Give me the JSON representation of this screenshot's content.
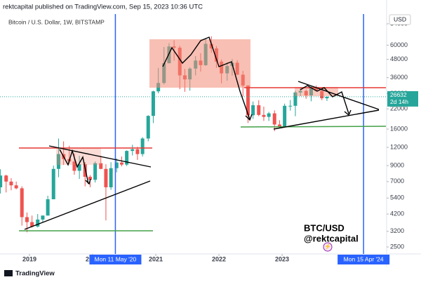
{
  "header": "rektcapital published on TradingView.com, Sep 15, 2023 10:36 UTC",
  "footer": "TradingView",
  "chart_data": {
    "type": "candlestick",
    "title": "Bitcoin / U.S. Dollar, 1W, BITSTAMP",
    "currency": "USD",
    "annotations": [
      "BTC/USD",
      "@rektcapital"
    ],
    "up_color": "#26a69a",
    "down_color": "#ef5350",
    "log_scale": true,
    "x": [
      2018.54,
      2018.63,
      2018.71,
      2018.79,
      2018.88,
      2018.96,
      2019.04,
      2019.13,
      2019.21,
      2019.29,
      2019.38,
      2019.46,
      2019.54,
      2019.63,
      2019.71,
      2019.79,
      2019.88,
      2019.96,
      2020.04,
      2020.13,
      2020.21,
      2020.29,
      2020.38,
      2020.46,
      2020.54,
      2020.63,
      2020.71,
      2020.79,
      2020.88,
      2020.96,
      2021.04,
      2021.13,
      2021.21,
      2021.29,
      2021.38,
      2021.46,
      2021.54,
      2021.63,
      2021.71,
      2021.79,
      2021.88,
      2021.96,
      2022.04,
      2022.13,
      2022.21,
      2022.29,
      2022.38,
      2022.46,
      2022.54,
      2022.63,
      2022.71,
      2022.79,
      2022.88,
      2022.96,
      2023.04,
      2023.13,
      2023.21,
      2023.29,
      2023.38,
      2023.46,
      2023.54,
      2023.63,
      2023.71
    ],
    "open": [
      6400,
      7700,
      7000,
      6600,
      6300,
      4000,
      3700,
      3450,
      3850,
      4100,
      5300,
      8550,
      10800,
      10000,
      9600,
      8300,
      9200,
      7550,
      7200,
      9350,
      8550,
      6400,
      8650,
      9450,
      9150,
      11350,
      11650,
      10800,
      13800,
      19700,
      29000,
      33100,
      45200,
      58800,
      57700,
      37300,
      35000,
      41500,
      47100,
      43800,
      61300,
      57000,
      46300,
      38500,
      43200,
      45500,
      37700,
      31800,
      19900,
      23300,
      20000,
      19400,
      20500,
      17200,
      16500,
      23100,
      23100,
      28500,
      29200,
      27200,
      30500,
      29200,
      26000
    ],
    "high": [
      8500,
      7800,
      7400,
      7000,
      6500,
      4300,
      4100,
      4200,
      4100,
      5600,
      9000,
      13800,
      13200,
      12300,
      10900,
      10500,
      9500,
      7750,
      9600,
      10500,
      9200,
      9500,
      10100,
      10400,
      11450,
      12500,
      12100,
      14100,
      19900,
      29300,
      41900,
      58300,
      61800,
      64800,
      59500,
      41300,
      42300,
      50500,
      52900,
      67000,
      69000,
      59100,
      47900,
      45800,
      48200,
      47400,
      40000,
      31900,
      24700,
      25200,
      22800,
      21000,
      21500,
      18400,
      23900,
      25300,
      29200,
      31000,
      29800,
      31400,
      31800,
      30200,
      26800
    ],
    "low": [
      5800,
      5900,
      6100,
      6200,
      3500,
      3150,
      3400,
      3400,
      3700,
      4100,
      5300,
      7500,
      9100,
      9300,
      7800,
      7300,
      6500,
      6400,
      6900,
      8500,
      3800,
      6150,
      8100,
      8900,
      8950,
      10550,
      9850,
      10400,
      13200,
      17600,
      28100,
      32300,
      45000,
      47000,
      30000,
      28800,
      29300,
      37300,
      39600,
      43300,
      53300,
      42000,
      32900,
      34300,
      37200,
      37600,
      26700,
      17600,
      18800,
      19600,
      18200,
      18200,
      15500,
      16300,
      16500,
      21400,
      19600,
      26900,
      25800,
      24800,
      28900,
      25200,
      24900
    ],
    "close": [
      7700,
      7000,
      6600,
      6300,
      4000,
      3700,
      3450,
      3850,
      4100,
      5300,
      8550,
      10800,
      10000,
      9600,
      8300,
      9200,
      7550,
      7200,
      9350,
      8550,
      6400,
      8650,
      9450,
      9150,
      11350,
      11650,
      10800,
      13800,
      19700,
      29000,
      33100,
      45200,
      58800,
      57700,
      37300,
      35000,
      41500,
      47100,
      43800,
      61300,
      57000,
      46300,
      38500,
      43200,
      45500,
      37700,
      31800,
      19900,
      23300,
      20000,
      19400,
      20500,
      17200,
      16500,
      23100,
      23100,
      28500,
      29200,
      27200,
      30500,
      29200,
      26000,
      26632
    ],
    "countdown": "2d 14h",
    "xlim": [
      2018.533,
      2024.644
    ],
    "xticks": [
      2019,
      2020,
      2021,
      2022,
      2023
    ],
    "vlines": [
      {
        "value": 2020.36,
        "label": "Mon 11 May '20"
      },
      {
        "value": 2024.29,
        "label": "Mon 15 Apr '24"
      }
    ],
    "vline_color": "#2962ff",
    "ylim": [
      2240,
      98000
    ],
    "yticks": [
      84000,
      60000,
      48000,
      36000,
      28000,
      22000,
      16000,
      12000,
      9000,
      7000,
      5400,
      4200,
      3200,
      2500
    ]
  }
}
